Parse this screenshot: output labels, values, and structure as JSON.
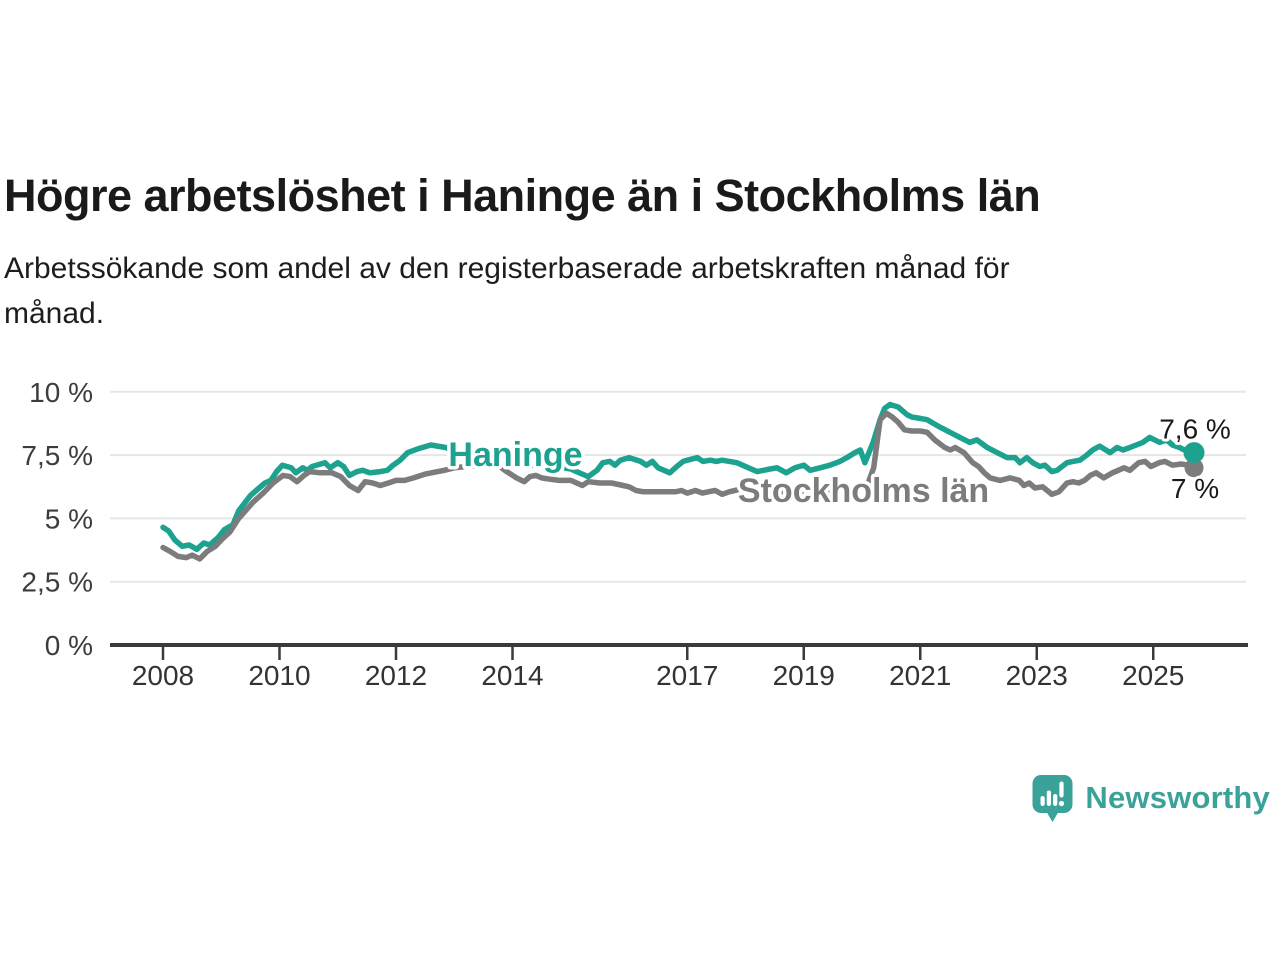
{
  "header": {
    "title": "Högre arbetslöshet i Haninge än i Stockholms län",
    "subtitle_lines": [
      "Arbetssökande som andel av den registerbaserade arbetskraften månad för",
      "månad."
    ]
  },
  "footer": {
    "brand": "Newsworthy",
    "logo_icon": "newsworthy-speech-bubble-bar-chart-icon",
    "brand_color": "#3ba29a"
  },
  "chart_data": {
    "type": "line",
    "title": "",
    "xlabel": "",
    "ylabel": "",
    "grid": "horizontal",
    "legend_position": "inline-labels",
    "ylim": [
      0,
      10
    ],
    "xlim": [
      2007.1,
      2026.6
    ],
    "y_ticks": [
      {
        "value": 0,
        "label": "0 %"
      },
      {
        "value": 2.5,
        "label": "2,5 %"
      },
      {
        "value": 5,
        "label": "5 %"
      },
      {
        "value": 7.5,
        "label": "7,5 %"
      },
      {
        "value": 10,
        "label": "10 %"
      }
    ],
    "x_ticks": [
      {
        "value": 2008,
        "label": "2008"
      },
      {
        "value": 2010,
        "label": "2010"
      },
      {
        "value": 2012,
        "label": "2012"
      },
      {
        "value": 2014,
        "label": "2014"
      },
      {
        "value": 2017,
        "label": "2017"
      },
      {
        "value": 2019,
        "label": "2019"
      },
      {
        "value": 2021,
        "label": "2021"
      },
      {
        "value": 2023,
        "label": "2023"
      },
      {
        "value": 2025,
        "label": "2025"
      }
    ],
    "colors": {
      "haninge": "#1ca28f",
      "stockholm": "#7c7c7c",
      "gridline": "#e6e6e6",
      "axis": "#3a3a3a",
      "end_label_text": "#1a1a1a"
    },
    "series": [
      {
        "name": "Haninge",
        "color": "#1ca28f",
        "end_label": "7,6 %",
        "end_value": 7.6,
        "label_anchor": {
          "year": 2012.9,
          "value": 7.55
        },
        "points": [
          [
            2008.0,
            4.65
          ],
          [
            2008.1,
            4.5
          ],
          [
            2008.2,
            4.15
          ],
          [
            2008.33,
            3.9
          ],
          [
            2008.45,
            3.95
          ],
          [
            2008.58,
            3.78
          ],
          [
            2008.7,
            4.03
          ],
          [
            2008.8,
            3.95
          ],
          [
            2008.95,
            4.25
          ],
          [
            2009.05,
            4.55
          ],
          [
            2009.2,
            4.75
          ],
          [
            2009.3,
            5.3
          ],
          [
            2009.5,
            5.9
          ],
          [
            2009.6,
            6.1
          ],
          [
            2009.75,
            6.4
          ],
          [
            2009.85,
            6.5
          ],
          [
            2009.95,
            6.85
          ],
          [
            2010.05,
            7.1
          ],
          [
            2010.2,
            7.0
          ],
          [
            2010.28,
            6.8
          ],
          [
            2010.4,
            7.0
          ],
          [
            2010.48,
            6.9
          ],
          [
            2010.56,
            7.05
          ],
          [
            2010.78,
            7.2
          ],
          [
            2010.87,
            7.0
          ],
          [
            2011.0,
            7.2
          ],
          [
            2011.1,
            7.05
          ],
          [
            2011.2,
            6.7
          ],
          [
            2011.33,
            6.85
          ],
          [
            2011.43,
            6.9
          ],
          [
            2011.55,
            6.8
          ],
          [
            2011.73,
            6.85
          ],
          [
            2011.85,
            6.9
          ],
          [
            2011.95,
            7.1
          ],
          [
            2012.07,
            7.3
          ],
          [
            2012.2,
            7.6
          ],
          [
            2012.38,
            7.75
          ],
          [
            2012.6,
            7.9
          ],
          [
            2012.85,
            7.8
          ],
          [
            2013.1,
            7.6
          ],
          [
            2013.45,
            7.4
          ],
          [
            2013.8,
            7.25
          ],
          [
            2014.05,
            7.15
          ],
          [
            2014.3,
            7.1
          ],
          [
            2014.55,
            7.1
          ],
          [
            2014.75,
            7.05
          ],
          [
            2015.0,
            6.95
          ],
          [
            2015.1,
            6.85
          ],
          [
            2015.3,
            6.65
          ],
          [
            2015.45,
            6.9
          ],
          [
            2015.55,
            7.2
          ],
          [
            2015.67,
            7.25
          ],
          [
            2015.76,
            7.1
          ],
          [
            2015.85,
            7.3
          ],
          [
            2016.0,
            7.4
          ],
          [
            2016.2,
            7.25
          ],
          [
            2016.3,
            7.1
          ],
          [
            2016.4,
            7.25
          ],
          [
            2016.5,
            7.0
          ],
          [
            2016.6,
            6.9
          ],
          [
            2016.7,
            6.8
          ],
          [
            2016.82,
            7.05
          ],
          [
            2016.93,
            7.25
          ],
          [
            2017.0,
            7.3
          ],
          [
            2017.17,
            7.4
          ],
          [
            2017.27,
            7.25
          ],
          [
            2017.4,
            7.3
          ],
          [
            2017.5,
            7.25
          ],
          [
            2017.6,
            7.3
          ],
          [
            2017.85,
            7.2
          ],
          [
            2018.2,
            6.85
          ],
          [
            2018.42,
            6.95
          ],
          [
            2018.54,
            7.0
          ],
          [
            2018.7,
            6.8
          ],
          [
            2018.85,
            7.0
          ],
          [
            2019.0,
            7.1
          ],
          [
            2019.11,
            6.9
          ],
          [
            2019.28,
            7.0
          ],
          [
            2019.45,
            7.1
          ],
          [
            2019.62,
            7.25
          ],
          [
            2019.74,
            7.4
          ],
          [
            2019.88,
            7.6
          ],
          [
            2019.97,
            7.7
          ],
          [
            2020.05,
            7.2
          ],
          [
            2020.19,
            8.0
          ],
          [
            2020.31,
            8.9
          ],
          [
            2020.39,
            9.35
          ],
          [
            2020.48,
            9.5
          ],
          [
            2020.62,
            9.4
          ],
          [
            2020.77,
            9.1
          ],
          [
            2020.86,
            9.0
          ],
          [
            2021.0,
            8.95
          ],
          [
            2021.12,
            8.9
          ],
          [
            2021.34,
            8.6
          ],
          [
            2021.51,
            8.4
          ],
          [
            2021.68,
            8.2
          ],
          [
            2021.85,
            8.0
          ],
          [
            2021.97,
            8.1
          ],
          [
            2022.15,
            7.8
          ],
          [
            2022.32,
            7.6
          ],
          [
            2022.49,
            7.4
          ],
          [
            2022.63,
            7.4
          ],
          [
            2022.71,
            7.2
          ],
          [
            2022.83,
            7.4
          ],
          [
            2022.93,
            7.2
          ],
          [
            2023.05,
            7.05
          ],
          [
            2023.14,
            7.1
          ],
          [
            2023.26,
            6.85
          ],
          [
            2023.35,
            6.9
          ],
          [
            2023.52,
            7.2
          ],
          [
            2023.62,
            7.25
          ],
          [
            2023.74,
            7.3
          ],
          [
            2023.86,
            7.5
          ],
          [
            2023.96,
            7.7
          ],
          [
            2024.08,
            7.85
          ],
          [
            2024.26,
            7.6
          ],
          [
            2024.38,
            7.8
          ],
          [
            2024.48,
            7.7
          ],
          [
            2024.6,
            7.8
          ],
          [
            2024.82,
            8.0
          ],
          [
            2024.94,
            8.2
          ],
          [
            2025.11,
            8.0
          ],
          [
            2025.23,
            8.1
          ],
          [
            2025.33,
            7.9
          ],
          [
            2025.45,
            7.8
          ],
          [
            2025.58,
            7.65
          ],
          [
            2025.7,
            7.6
          ]
        ]
      },
      {
        "name": "Stockholms län",
        "color": "#7c7c7c",
        "end_label": "7 %",
        "end_value": 7.0,
        "label_anchor": {
          "year": 2017.87,
          "value": 6.13
        },
        "points": [
          [
            2008.0,
            3.85
          ],
          [
            2008.12,
            3.7
          ],
          [
            2008.26,
            3.5
          ],
          [
            2008.4,
            3.45
          ],
          [
            2008.5,
            3.55
          ],
          [
            2008.63,
            3.4
          ],
          [
            2008.76,
            3.7
          ],
          [
            2008.9,
            3.9
          ],
          [
            2009.0,
            4.15
          ],
          [
            2009.15,
            4.47
          ],
          [
            2009.3,
            5.0
          ],
          [
            2009.55,
            5.65
          ],
          [
            2009.72,
            6.0
          ],
          [
            2009.89,
            6.4
          ],
          [
            2010.06,
            6.7
          ],
          [
            2010.18,
            6.65
          ],
          [
            2010.3,
            6.45
          ],
          [
            2010.42,
            6.7
          ],
          [
            2010.52,
            6.85
          ],
          [
            2010.7,
            6.8
          ],
          [
            2010.9,
            6.8
          ],
          [
            2011.05,
            6.65
          ],
          [
            2011.2,
            6.3
          ],
          [
            2011.35,
            6.1
          ],
          [
            2011.47,
            6.45
          ],
          [
            2011.6,
            6.4
          ],
          [
            2011.73,
            6.3
          ],
          [
            2011.87,
            6.4
          ],
          [
            2012.0,
            6.5
          ],
          [
            2012.15,
            6.5
          ],
          [
            2012.3,
            6.6
          ],
          [
            2012.5,
            6.75
          ],
          [
            2012.83,
            6.9
          ],
          [
            2013.0,
            7.0
          ],
          [
            2013.2,
            7.05
          ],
          [
            2013.45,
            7.1
          ],
          [
            2013.6,
            7.05
          ],
          [
            2013.75,
            7.1
          ],
          [
            2013.9,
            6.85
          ],
          [
            2014.07,
            6.6
          ],
          [
            2014.2,
            6.45
          ],
          [
            2014.3,
            6.65
          ],
          [
            2014.4,
            6.7
          ],
          [
            2014.5,
            6.6
          ],
          [
            2014.64,
            6.55
          ],
          [
            2014.8,
            6.5
          ],
          [
            2015.0,
            6.5
          ],
          [
            2015.2,
            6.3
          ],
          [
            2015.3,
            6.45
          ],
          [
            2015.5,
            6.4
          ],
          [
            2015.7,
            6.4
          ],
          [
            2015.9,
            6.3
          ],
          [
            2016.0,
            6.25
          ],
          [
            2016.12,
            6.1
          ],
          [
            2016.25,
            6.05
          ],
          [
            2016.45,
            6.05
          ],
          [
            2016.65,
            6.05
          ],
          [
            2016.8,
            6.05
          ],
          [
            2016.9,
            6.1
          ],
          [
            2017.0,
            6.0
          ],
          [
            2017.14,
            6.1
          ],
          [
            2017.26,
            6.0
          ],
          [
            2017.36,
            6.05
          ],
          [
            2017.48,
            6.1
          ],
          [
            2017.6,
            5.95
          ],
          [
            2017.72,
            6.05
          ],
          [
            2017.9,
            6.15
          ],
          [
            2018.1,
            6.2
          ],
          [
            2018.35,
            6.1
          ],
          [
            2018.6,
            6.05
          ],
          [
            2018.85,
            6.0
          ],
          [
            2019.1,
            6.0
          ],
          [
            2019.35,
            6.05
          ],
          [
            2019.6,
            6.1
          ],
          [
            2019.8,
            6.15
          ],
          [
            2019.97,
            6.3
          ],
          [
            2020.08,
            6.25
          ],
          [
            2020.2,
            7.0
          ],
          [
            2020.31,
            8.9
          ],
          [
            2020.42,
            9.15
          ],
          [
            2020.52,
            9.0
          ],
          [
            2020.62,
            8.8
          ],
          [
            2020.73,
            8.5
          ],
          [
            2020.85,
            8.45
          ],
          [
            2021.0,
            8.45
          ],
          [
            2021.12,
            8.4
          ],
          [
            2021.25,
            8.1
          ],
          [
            2021.42,
            7.8
          ],
          [
            2021.52,
            7.7
          ],
          [
            2021.6,
            7.8
          ],
          [
            2021.75,
            7.6
          ],
          [
            2021.9,
            7.2
          ],
          [
            2022.0,
            7.05
          ],
          [
            2022.1,
            6.8
          ],
          [
            2022.2,
            6.6
          ],
          [
            2022.37,
            6.5
          ],
          [
            2022.54,
            6.6
          ],
          [
            2022.7,
            6.5
          ],
          [
            2022.78,
            6.3
          ],
          [
            2022.87,
            6.4
          ],
          [
            2022.97,
            6.2
          ],
          [
            2023.1,
            6.25
          ],
          [
            2023.26,
            5.95
          ],
          [
            2023.38,
            6.05
          ],
          [
            2023.52,
            6.4
          ],
          [
            2023.62,
            6.45
          ],
          [
            2023.72,
            6.4
          ],
          [
            2023.82,
            6.5
          ],
          [
            2023.92,
            6.7
          ],
          [
            2024.02,
            6.8
          ],
          [
            2024.15,
            6.6
          ],
          [
            2024.3,
            6.8
          ],
          [
            2024.4,
            6.9
          ],
          [
            2024.5,
            7.0
          ],
          [
            2024.6,
            6.9
          ],
          [
            2024.75,
            7.2
          ],
          [
            2024.86,
            7.25
          ],
          [
            2024.96,
            7.05
          ],
          [
            2025.1,
            7.2
          ],
          [
            2025.2,
            7.25
          ],
          [
            2025.33,
            7.1
          ],
          [
            2025.48,
            7.15
          ],
          [
            2025.6,
            7.1
          ],
          [
            2025.7,
            7.0
          ]
        ]
      }
    ]
  }
}
